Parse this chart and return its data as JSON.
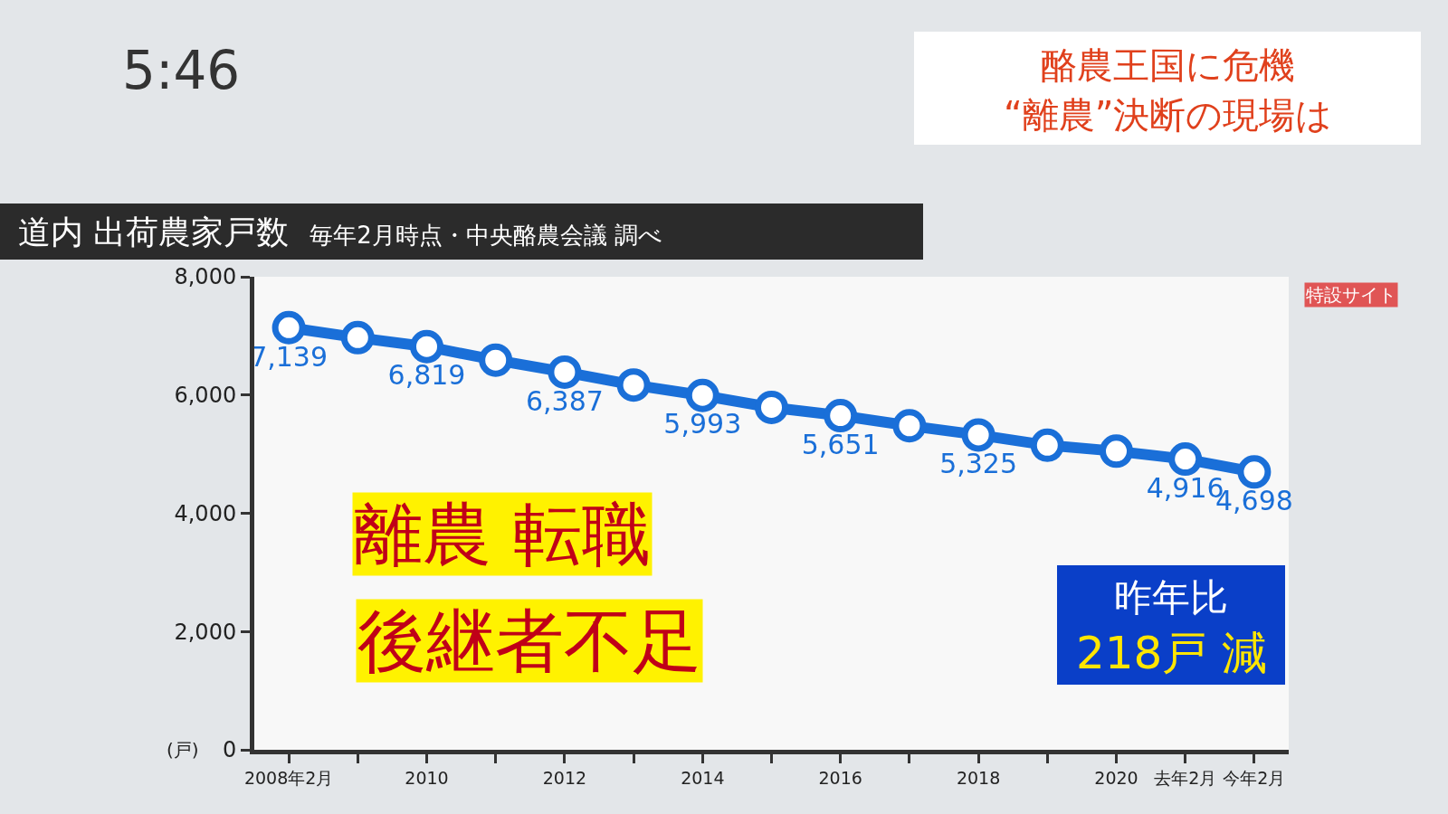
{
  "chart_data": {
    "type": "line",
    "title": "道内 出荷農家戸数",
    "subtitle": "毎年2月時点・中央酪農会議 調べ",
    "ylabel": "(戸)",
    "x": [
      2008,
      2009,
      2010,
      2011,
      2012,
      2013,
      2014,
      2015,
      2016,
      2017,
      2018,
      2019,
      2020,
      2021,
      2022
    ],
    "series": [
      {
        "color": "#1a6fd8",
        "values": [
          7139,
          6970,
          6819,
          6590,
          6387,
          6170,
          5993,
          5790,
          5651,
          5480,
          5325,
          5150,
          5050,
          4916,
          4698
        ],
        "value_labels": [
          "7,139",
          null,
          "6,819",
          null,
          "6,387",
          null,
          "5,993",
          null,
          "5,651",
          null,
          "5,325",
          null,
          null,
          "4,916",
          "4,698"
        ]
      }
    ],
    "xlim": [
      2007.5,
      2022.5
    ],
    "xticks": [
      {
        "value": 2008,
        "label": "2008年2月"
      },
      {
        "value": 2009,
        "label": null
      },
      2010,
      {
        "value": 2011,
        "label": null
      },
      2012,
      {
        "value": 2013,
        "label": null
      },
      2014,
      {
        "value": 2015,
        "label": null
      },
      2016,
      {
        "value": 2017,
        "label": null
      },
      2018,
      {
        "value": 2019,
        "label": null
      },
      2020,
      {
        "value": 2021,
        "label": "去年2月"
      },
      {
        "value": 2022,
        "label": "今年2月"
      }
    ],
    "ylim": [
      0,
      8000
    ],
    "yticks": [
      {
        "value": 0,
        "label": "0"
      },
      {
        "value": 2000,
        "label": "2,000"
      },
      {
        "value": 4000,
        "label": "4,000"
      },
      {
        "value": 6000,
        "label": "6,000"
      },
      {
        "value": 8000,
        "label": "8,000"
      }
    ],
    "grid": false,
    "legend": false,
    "marker": "circle",
    "line_style": "solid",
    "annotations": [
      "5:46",
      "酪農王国に危機",
      "“離農”決断の現場は",
      "特設サイト",
      "離農 転職",
      "後継者不足",
      "昨年比",
      "218戸 減"
    ]
  }
}
